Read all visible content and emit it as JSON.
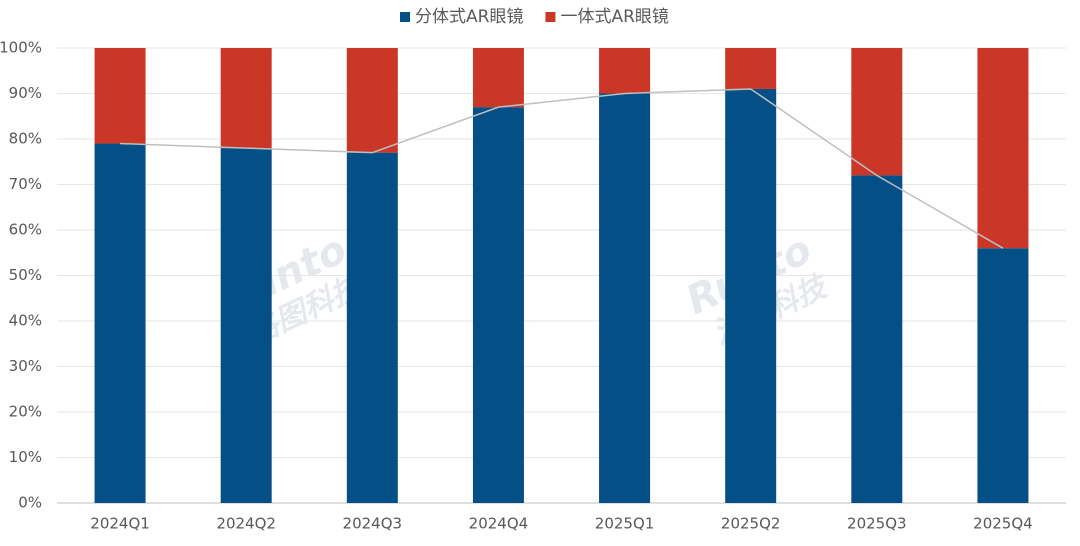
{
  "chart_data": {
    "type": "stacked_bar_percent",
    "categories": [
      "2024Q1",
      "2024Q2",
      "2024Q3",
      "2024Q4",
      "2025Q1",
      "2025Q2",
      "2025Q3",
      "2025Q4"
    ],
    "series": [
      {
        "name": "分体式AR眼镜",
        "color": "#045086",
        "values": [
          79,
          78,
          77,
          87,
          90,
          91,
          72,
          56
        ]
      },
      {
        "name": "一体式AR眼镜",
        "color": "#cb3727",
        "values": [
          21,
          22,
          23,
          13,
          10,
          9,
          28,
          44
        ]
      }
    ],
    "ylim": [
      0,
      100
    ],
    "yticks": [
      {
        "value": 0,
        "label": "0%"
      },
      {
        "value": 10,
        "label": "10%"
      },
      {
        "value": 20,
        "label": "20%"
      },
      {
        "value": 30,
        "label": "30%"
      },
      {
        "value": 40,
        "label": "40%"
      },
      {
        "value": 50,
        "label": "50%"
      },
      {
        "value": 60,
        "label": "60%"
      },
      {
        "value": 70,
        "label": "70%"
      },
      {
        "value": 80,
        "label": "80%"
      },
      {
        "value": 90,
        "label": "90%"
      },
      {
        "value": 100,
        "label": "100%"
      }
    ],
    "grid": true,
    "legend": "top",
    "connector_line_color": "#bfbfbf",
    "watermark": {
      "brand": "Runto",
      "name": "洛图科技"
    }
  }
}
